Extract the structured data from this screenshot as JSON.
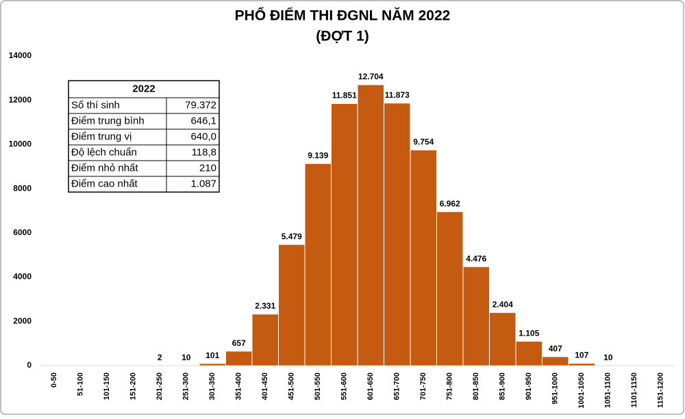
{
  "chart_data": {
    "type": "bar",
    "title": "PHỔ ĐIỂM THI ĐGNL NĂM 2022",
    "subtitle": "(ĐỢT 1)",
    "categories": [
      "0-50",
      "51-100",
      "101-150",
      "151-200",
      "201-250",
      "251-300",
      "301-350",
      "351-400",
      "401-450",
      "451-500",
      "501-550",
      "551-600",
      "601-650",
      "651-700",
      "701-750",
      "751-800",
      "801-850",
      "851-900",
      "901-950",
      "951-1000",
      "1001-1050",
      "1051-1100",
      "1101-1150",
      "1151-1200"
    ],
    "values": [
      0,
      0,
      0,
      0,
      2,
      10,
      101,
      657,
      2331,
      5479,
      9139,
      11851,
      12704,
      11873,
      9754,
      6962,
      4476,
      2404,
      1105,
      407,
      107,
      10,
      0,
      0
    ],
    "value_labels": [
      null,
      null,
      null,
      null,
      "2",
      "10",
      "101",
      "657",
      "2.331",
      "5.479",
      "9.139",
      "11.851",
      "12.704",
      "11.873",
      "9.754",
      "6.962",
      "4.476",
      "2.404",
      "1.105",
      "407",
      "107",
      "10",
      null,
      null
    ],
    "color": "#c55a11",
    "ylim": [
      0,
      14000
    ],
    "yticks": [
      0,
      2000,
      4000,
      6000,
      8000,
      10000,
      12000,
      14000
    ],
    "grid": false
  },
  "table": {
    "header": "2022",
    "rows": [
      [
        "Số thí sinh",
        "79.372"
      ],
      [
        "Điểm trung bình",
        "646,1"
      ],
      [
        "Điểm trung vị",
        "640,0"
      ],
      [
        "Độ lệch chuẩn",
        "118,8"
      ],
      [
        "Điểm nhỏ nhất",
        "210"
      ],
      [
        "Điểm cao nhất",
        "1.087"
      ]
    ]
  }
}
